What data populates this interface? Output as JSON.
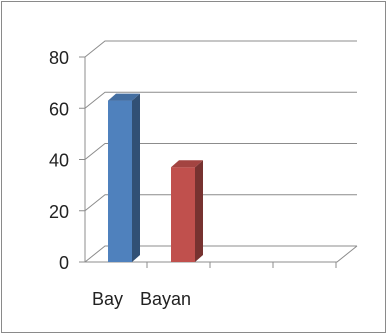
{
  "chart_data": {
    "type": "bar",
    "categories": [
      "Bay",
      "Bayan"
    ],
    "series": [
      {
        "values": [
          63,
          37
        ]
      }
    ],
    "bar_colors": [
      "#4f81bd",
      "#c0504d"
    ],
    "yticks": [
      "0",
      "20",
      "40",
      "60",
      "80"
    ],
    "ylim": [
      0,
      80
    ],
    "grid": true,
    "three_d": true,
    "legend": "none"
  }
}
